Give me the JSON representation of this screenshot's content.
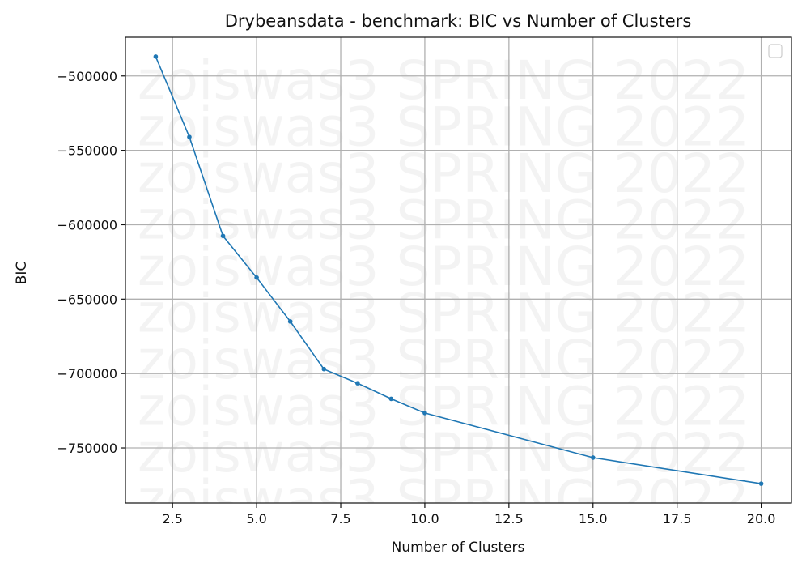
{
  "chart_data": {
    "type": "line",
    "title": "Drybeansdata - benchmark: BIC vs Number of Clusters",
    "xlabel": "Number of Clusters",
    "ylabel": "BIC",
    "xlim": [
      1.1,
      20.9
    ],
    "ylim": [
      -787000,
      -474000
    ],
    "xticks": [
      2.5,
      5.0,
      7.5,
      10.0,
      12.5,
      15.0,
      17.5,
      20.0
    ],
    "xtick_labels": [
      "2.5",
      "5.0",
      "7.5",
      "10.0",
      "12.5",
      "15.0",
      "17.5",
      "20.0"
    ],
    "yticks": [
      -500000,
      -550000,
      -600000,
      -650000,
      -700000,
      -750000
    ],
    "ytick_labels": [
      "−500000",
      "−550000",
      "−600000",
      "−650000",
      "−700000",
      "−750000"
    ],
    "grid": true,
    "legend": "top-right (empty)",
    "series": [
      {
        "color": "#1f77b4",
        "x": [
          2,
          3,
          4,
          5,
          6,
          7,
          8,
          9,
          10,
          15,
          20
        ],
        "y": [
          -487000,
          -541000,
          -607500,
          -635500,
          -665000,
          -697000,
          -706500,
          -717000,
          -726500,
          -756500,
          -774000
        ]
      }
    ],
    "watermark": "zoiswas3 SPRING 2022"
  }
}
